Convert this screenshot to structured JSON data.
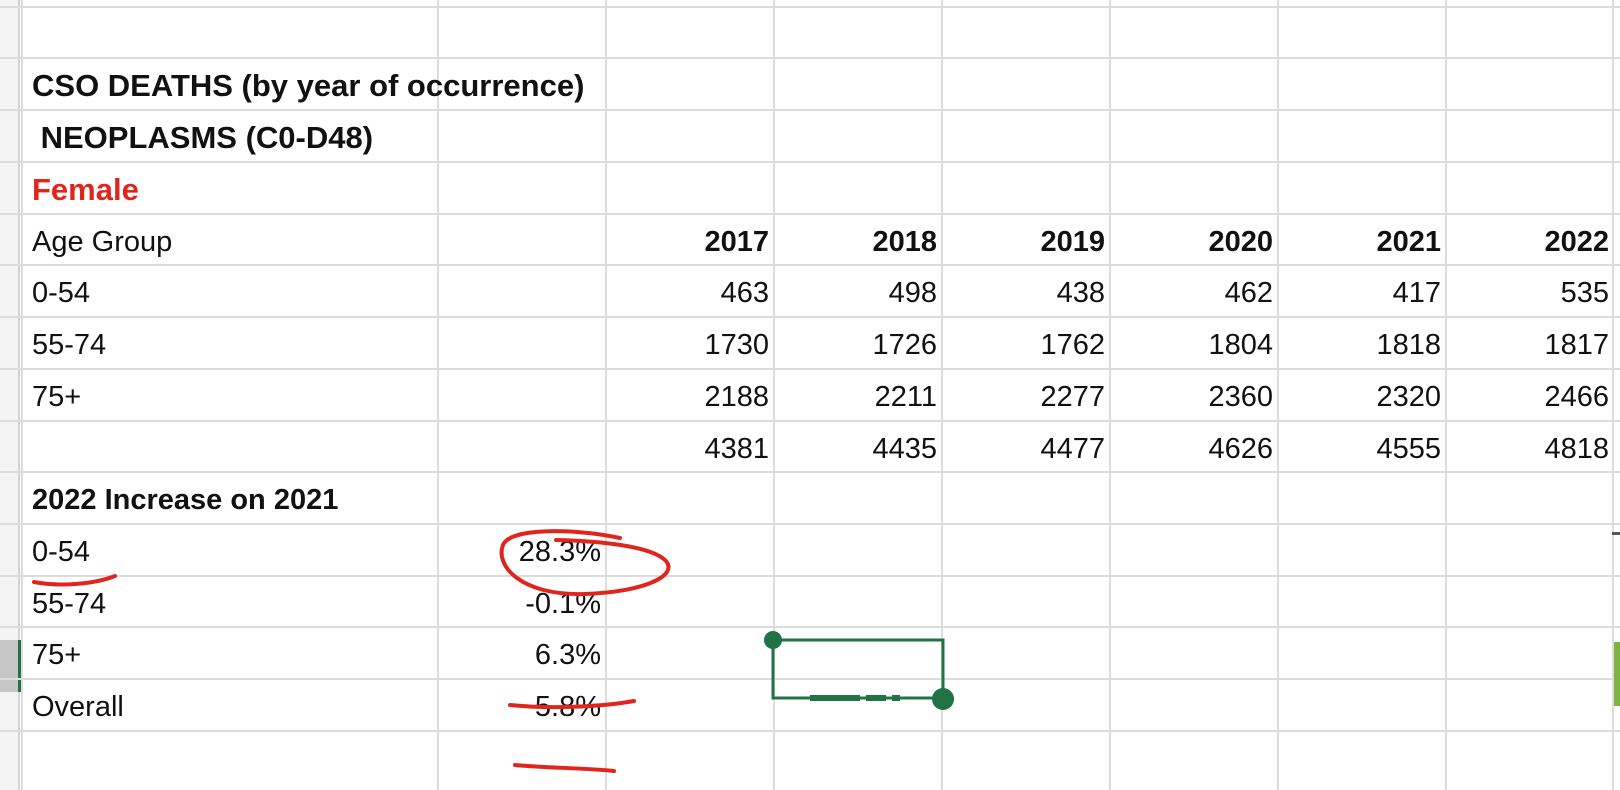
{
  "sheet": {
    "title1": "CSO DEATHS (by year of occurrence)",
    "title2": " NEOPLASMS (C0-D48)",
    "subtitle": "Female",
    "table": {
      "header_label": "Age Group",
      "years": [
        "2017",
        "2018",
        "2019",
        "2020",
        "2021",
        "2022"
      ],
      "rows": [
        {
          "label": "0-54",
          "values": [
            "463",
            "498",
            "438",
            "462",
            "417",
            "535"
          ]
        },
        {
          "label": "55-74",
          "values": [
            "1730",
            "1726",
            "1762",
            "1804",
            "1818",
            "1817"
          ]
        },
        {
          "label": "75+",
          "values": [
            "2188",
            "2211",
            "2277",
            "2360",
            "2320",
            "2466"
          ]
        },
        {
          "label": "",
          "values": [
            "4381",
            "4435",
            "4477",
            "4626",
            "4555",
            "4818"
          ]
        }
      ]
    },
    "increase": {
      "heading": "2022 Increase on 2021",
      "rows": [
        {
          "label": "0-54",
          "value": "28.3%"
        },
        {
          "label": "55-74",
          "value": "-0.1%"
        },
        {
          "label": "75+",
          "value": "6.3%"
        },
        {
          "label": "Overall",
          "value": "5.8%"
        }
      ]
    },
    "colors": {
      "annotation": "#e0261c",
      "selection": "#217346",
      "gridline": "#dcdcdc"
    }
  }
}
